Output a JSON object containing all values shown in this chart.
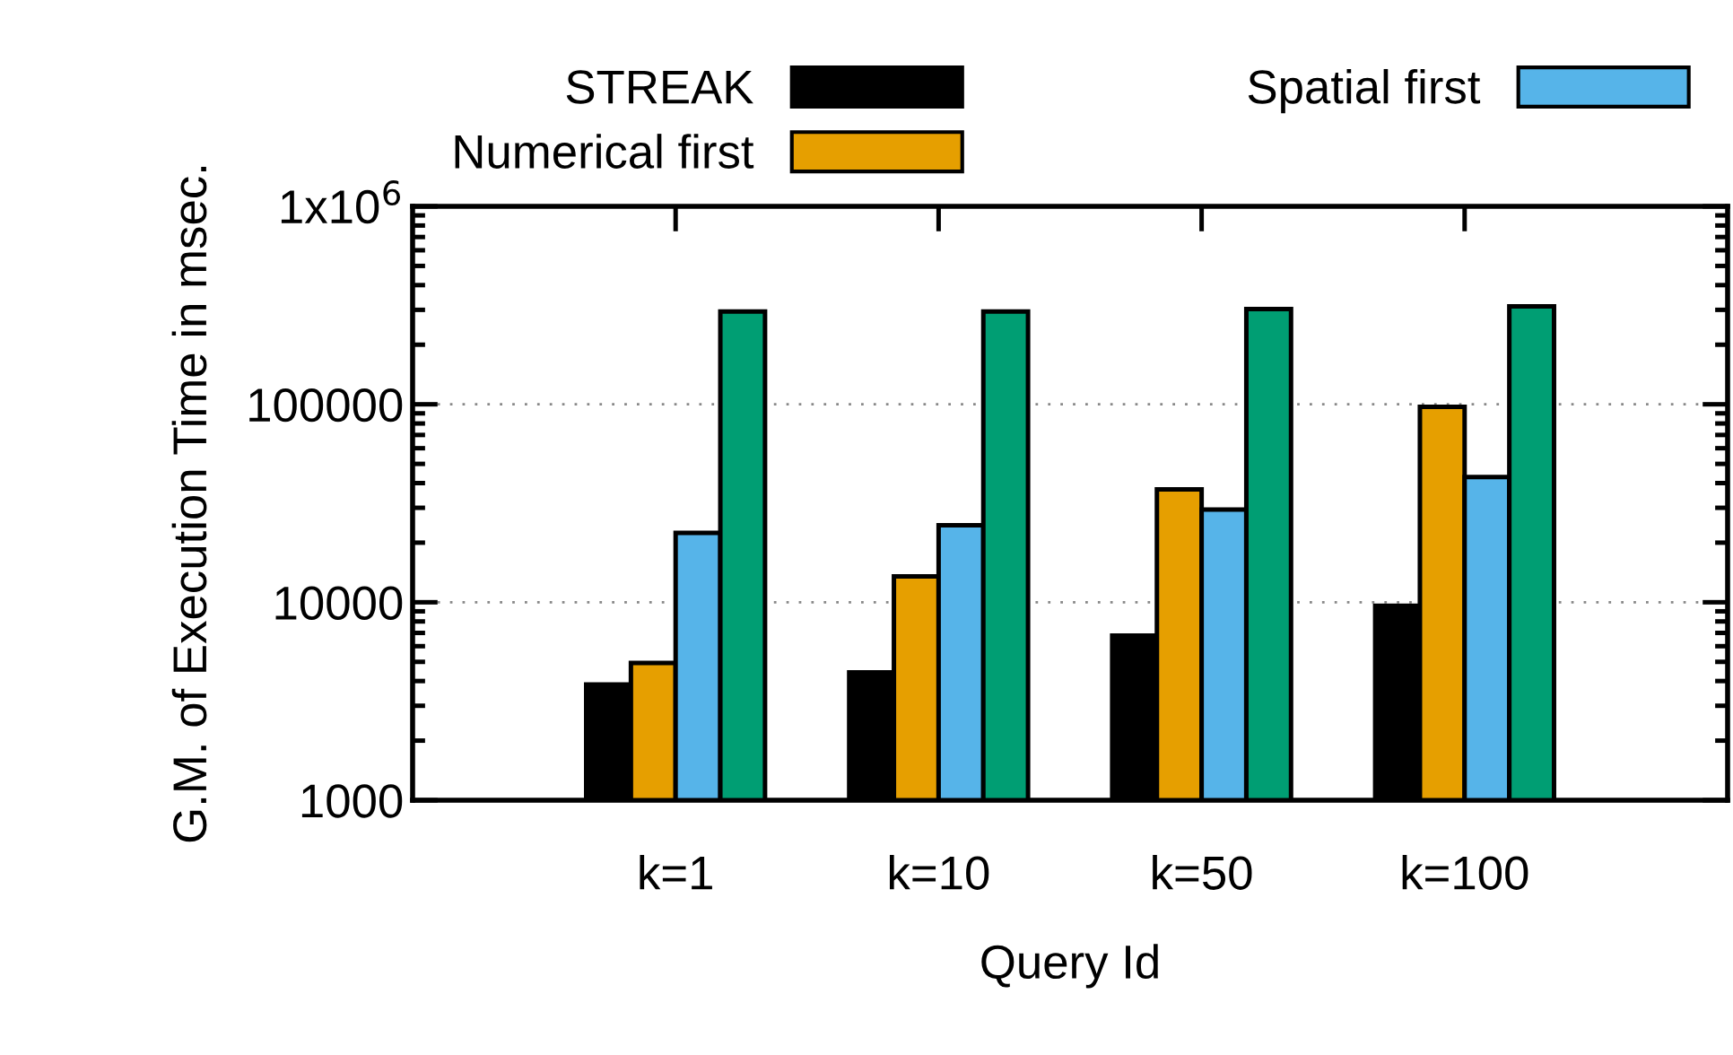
{
  "chart_data": {
    "type": "bar",
    "xlabel": "Query Id",
    "ylabel": "G.M. of Execution Time in msec.",
    "categories": [
      "k=1",
      "k=10",
      "k=50",
      "k=100"
    ],
    "series": [
      {
        "name": "STREAK",
        "color": "#000000",
        "values": [
          3840,
          4420,
          6780,
          9600
        ]
      },
      {
        "name": "Numerical first",
        "color": "#e69f00",
        "values": [
          4930,
          13500,
          37200,
          97000
        ]
      },
      {
        "name": "Spatial first",
        "color": "#56b4e9",
        "values": [
          22400,
          24500,
          29400,
          42900
        ]
      },
      {
        "color": "#009e73",
        "values": [
          294000,
          294000,
          303000,
          312000
        ]
      }
    ],
    "log": "y",
    "ylim": [
      1000,
      1000000
    ],
    "yticks": [
      1000,
      10000,
      100000,
      {
        "value": 1000000,
        "label": "1x10$^{6}$"
      }
    ],
    "grid": "y",
    "legend": "top"
  }
}
